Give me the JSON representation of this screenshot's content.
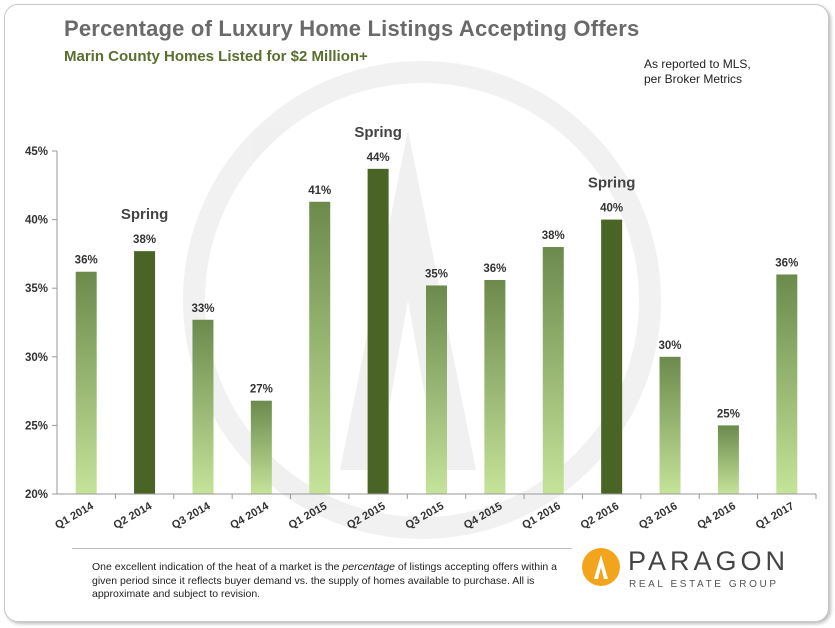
{
  "header": {
    "title": "Percentage of Luxury Home Listings Accepting Offers",
    "subtitle": "Marin County Homes Listed for $2 Million+",
    "note_line1": "As reported to MLS,",
    "note_line2": "per Broker Metrics"
  },
  "footer": {
    "text_before": "One excellent indication of the heat of a market is the ",
    "text_emph": "percentage",
    "text_after": " of listings accepting offers within a given period since it reflects buyer demand vs. the supply of homes available to purchase. All is approximate and subject to revision.",
    "logo_name": "PARAGON",
    "logo_tagline": "REAL ESTATE GROUP"
  },
  "colors": {
    "bar_top": "#6b8a4c",
    "bar_bottom": "#c6e39a",
    "spring_bar": "#4a6426",
    "axis": "#999999",
    "label_text": "#333333"
  },
  "chart_data": {
    "type": "bar",
    "categories": [
      "Q1 2014",
      "Q2 2014",
      "Q3 2014",
      "Q4 2014",
      "Q1 2015",
      "Q2 2015",
      "Q3 2015",
      "Q4 2015",
      "Q1  2016",
      "Q2 2016",
      "Q3 2016",
      "Q4 2016",
      "Q1 2017"
    ],
    "values": [
      36.2,
      37.7,
      32.7,
      26.8,
      41.3,
      43.7,
      35.2,
      35.6,
      38.0,
      40.0,
      30.0,
      25.0,
      36.0
    ],
    "data_labels": [
      "36%",
      "38%",
      "33%",
      "27%",
      "41%",
      "44%",
      "35%",
      "36%",
      "38%",
      "40%",
      "30%",
      "25%",
      "36%"
    ],
    "highlight_indices": [
      1,
      5,
      9
    ],
    "highlight_label": "Spring",
    "ylim": [
      20,
      45
    ],
    "yticks": [
      20,
      25,
      30,
      35,
      40,
      45
    ],
    "ytick_labels": [
      "20%",
      "25%",
      "30%",
      "35%",
      "40%",
      "45%"
    ],
    "xlabel": "",
    "ylabel": "",
    "grid": false,
    "legend": "none"
  }
}
